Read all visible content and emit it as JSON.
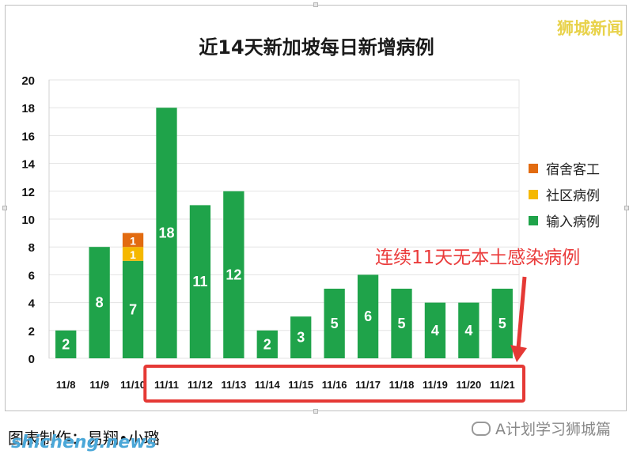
{
  "chart_data": {
    "type": "bar",
    "title": "近14天新加坡每日新增病例",
    "categories": [
      "11/8",
      "11/9",
      "11/10",
      "11/11",
      "11/12",
      "11/13",
      "11/14",
      "11/15",
      "11/16",
      "11/17",
      "11/18",
      "11/19",
      "11/20",
      "11/21"
    ],
    "series": [
      {
        "name": "输入病例",
        "color": "#1fa34a",
        "values": [
          2,
          8,
          7,
          18,
          11,
          12,
          2,
          3,
          5,
          6,
          5,
          4,
          4,
          5
        ]
      },
      {
        "name": "社区病例",
        "color": "#f5b800",
        "values": [
          0,
          0,
          1,
          0,
          0,
          0,
          0,
          0,
          0,
          0,
          0,
          0,
          0,
          0
        ]
      },
      {
        "name": "宿舍客工",
        "color": "#e26b10",
        "values": [
          0,
          0,
          1,
          0,
          0,
          0,
          0,
          0,
          0,
          0,
          0,
          0,
          0,
          0
        ]
      }
    ],
    "ylim": [
      0,
      20
    ],
    "yticks": [
      0,
      2,
      4,
      6,
      8,
      10,
      12,
      14,
      16,
      18,
      20
    ],
    "grid": true,
    "legend_position": "right",
    "highlight_range": [
      "11/11",
      "11/21"
    ],
    "annotation": "连续11天无本土感染病例"
  },
  "legend": [
    {
      "label": "宿舍客工",
      "color": "#e26b10"
    },
    {
      "label": "社区病例",
      "color": "#f5b800"
    },
    {
      "label": "输入病例",
      "color": "#1fa34a"
    }
  ],
  "credit": "图表制作：易翔•小璐",
  "watermarks": {
    "top_right": "狮城新闻",
    "bottom_right": "A计划学习狮城篇",
    "bottom_left": "shicheng.news"
  },
  "colors": {
    "highlight_box": "#e53935",
    "arrow": "#e53935"
  }
}
